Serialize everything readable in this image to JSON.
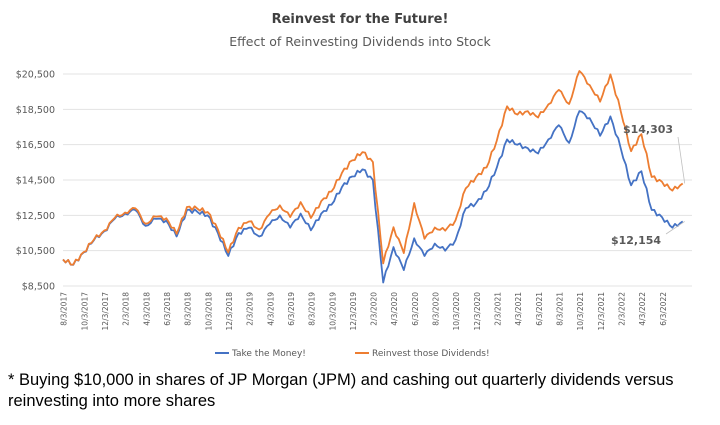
{
  "chart_data": {
    "type": "line",
    "title": "Reinvest for the Future!",
    "subtitle": "Effect of Reinvesting Dividends into Stock",
    "xlabel": "",
    "ylabel": "",
    "ylim": [
      8500,
      20500
    ],
    "yticks": [
      8500,
      10500,
      12500,
      14500,
      16500,
      18500,
      20500
    ],
    "ytick_labels": [
      "$8,500",
      "$10,500",
      "$12,500",
      "$14,500",
      "$16,500",
      "$18,500",
      "$20,500"
    ],
    "xlim": [
      "2017-08",
      "2022-08"
    ],
    "xtick_labels": [
      "8/3/2017",
      "10/3/2017",
      "12/3/2017",
      "2/3/2018",
      "4/3/2018",
      "6/3/2018",
      "8/3/2018",
      "10/3/2018",
      "12/3/2018",
      "2/3/2019",
      "4/3/2019",
      "6/3/2019",
      "8/3/2019",
      "10/3/2019",
      "12/3/2019",
      "2/3/2020",
      "4/3/2020",
      "6/3/2020",
      "8/3/2020",
      "10/3/2020",
      "12/3/2020",
      "2/3/2021",
      "4/3/2021",
      "6/3/2021",
      "8/3/2021",
      "10/3/2021",
      "12/3/2021",
      "2/3/2022",
      "4/3/2022",
      "6/3/2022"
    ],
    "grid": true,
    "legend_position": "bottom",
    "x": [
      "2017-08",
      "2017-09",
      "2017-10",
      "2017-11",
      "2017-12",
      "2018-01",
      "2018-02",
      "2018-03",
      "2018-04",
      "2018-05",
      "2018-06",
      "2018-07",
      "2018-08",
      "2018-09",
      "2018-10",
      "2018-11",
      "2018-12",
      "2019-01",
      "2019-02",
      "2019-03",
      "2019-04",
      "2019-05",
      "2019-06",
      "2019-07",
      "2019-08",
      "2019-09",
      "2019-10",
      "2019-11",
      "2019-12",
      "2020-01",
      "2020-02",
      "2020-03",
      "2020-04",
      "2020-05",
      "2020-06",
      "2020-07",
      "2020-08",
      "2020-09",
      "2020-10",
      "2020-11",
      "2020-12",
      "2021-01",
      "2021-02",
      "2021-03",
      "2021-04",
      "2021-05",
      "2021-06",
      "2021-07",
      "2021-08",
      "2021-09",
      "2021-10",
      "2021-11",
      "2021-12",
      "2022-01",
      "2022-02",
      "2022-03",
      "2022-04",
      "2022-05",
      "2022-06",
      "2022-07",
      "2022-08"
    ],
    "series": [
      {
        "name": "Take the Money!",
        "color": "#4472C4",
        "values": [
          10000,
          9700,
          10400,
          11100,
          11600,
          12300,
          12600,
          12800,
          11900,
          12300,
          12200,
          11300,
          12800,
          12700,
          12500,
          11500,
          10200,
          11500,
          11800,
          11300,
          12000,
          12500,
          11800,
          12600,
          11650,
          12600,
          13100,
          14100,
          14700,
          15100,
          14500,
          8700,
          10700,
          9400,
          11200,
          10200,
          10900,
          10500,
          11100,
          12900,
          13200,
          13900,
          15200,
          16800,
          16500,
          16300,
          16000,
          16800,
          17600,
          16600,
          18400,
          18000,
          17000,
          18100,
          16300,
          14200,
          15000,
          12800,
          12400,
          11800,
          12154
        ]
      },
      {
        "name": "Reinvest those Dividends!",
        "color": "#ED7D31",
        "values": [
          10000,
          9710,
          10420,
          11130,
          11640,
          12350,
          12660,
          12900,
          12020,
          12430,
          12340,
          11450,
          12970,
          12880,
          12690,
          11700,
          10400,
          11800,
          12150,
          11700,
          12570,
          13070,
          12400,
          13250,
          12350,
          13300,
          13850,
          14900,
          15610,
          16080,
          15520,
          9780,
          11830,
          10360,
          13200,
          11170,
          11810,
          11630,
          12220,
          14030,
          14670,
          15210,
          16730,
          18670,
          18200,
          18400,
          18040,
          18780,
          19600,
          18800,
          20670,
          19870,
          18930,
          20480,
          18400,
          16130,
          17100,
          14670,
          14400,
          13900,
          14303
        ]
      }
    ],
    "annotations": [
      {
        "text": "$14,303",
        "series": "Reinvest those Dividends!"
      },
      {
        "text": "$12,154",
        "series": "Take the Money!"
      }
    ]
  },
  "footnote": "* Buying $10,000 in shares of JP Morgan (JPM) and cashing out quarterly dividends versus reinvesting into more shares"
}
